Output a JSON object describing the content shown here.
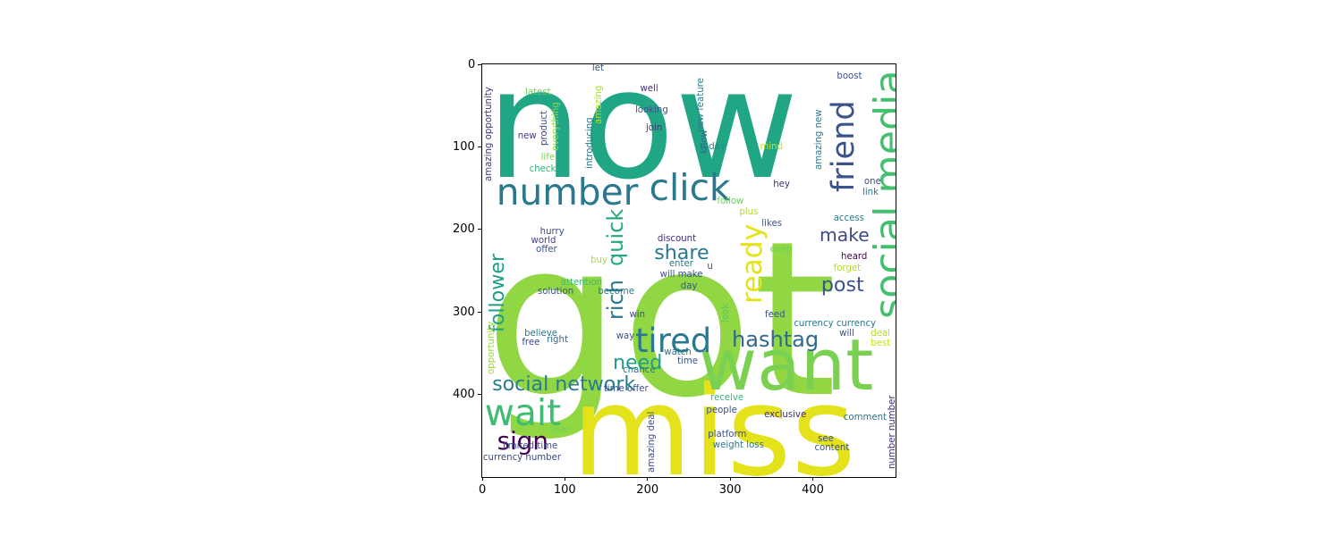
{
  "chart_data": {
    "type": "wordcloud",
    "xlim": [
      0,
      500
    ],
    "ylim": [
      500,
      0
    ],
    "x_ticks": [
      "0",
      "100",
      "200",
      "300",
      "400"
    ],
    "y_ticks": [
      "0",
      "100",
      "200",
      "300",
      "400"
    ],
    "colormap": "viridis",
    "words": [
      {
        "text": "now",
        "x": 5,
        "y": 128,
        "size": 183,
        "color": "#21a685",
        "rot": 0
      },
      {
        "text": "got",
        "x": 3,
        "y": 388,
        "size": 260,
        "color": "#90d743",
        "rot": 0
      },
      {
        "text": "miss",
        "x": 108,
        "y": 490,
        "size": 150,
        "color": "#e4e21b",
        "rot": 0
      },
      {
        "text": "want",
        "x": 262,
        "y": 390,
        "size": 86,
        "color": "#7ad151",
        "rot": 0
      },
      {
        "text": "number",
        "x": 17,
        "y": 168,
        "size": 44,
        "color": "#2a788e",
        "rot": 0
      },
      {
        "text": "click",
        "x": 202,
        "y": 163,
        "size": 44,
        "color": "#2a788e",
        "rot": 0
      },
      {
        "text": "social media",
        "x": 470,
        "y": 308,
        "size": 48,
        "color": "#44bf70",
        "rot": 90
      },
      {
        "text": "friend",
        "x": 418,
        "y": 155,
        "size": 38,
        "color": "#3b528b",
        "rot": 90
      },
      {
        "text": "ready",
        "x": 311,
        "y": 290,
        "size": 34,
        "color": "#e4e21b",
        "rot": 90
      },
      {
        "text": "quick",
        "x": 148,
        "y": 245,
        "size": 26,
        "color": "#22a884",
        "rot": 90
      },
      {
        "text": "rich",
        "x": 148,
        "y": 310,
        "size": 26,
        "color": "#2a788e",
        "rot": 90
      },
      {
        "text": "tired",
        "x": 185,
        "y": 348,
        "size": 40,
        "color": "#2a788e",
        "rot": 0
      },
      {
        "text": "hashtag",
        "x": 302,
        "y": 341,
        "size": 26,
        "color": "#31688e",
        "rot": 0
      },
      {
        "text": "make",
        "x": 408,
        "y": 213,
        "size": 22,
        "color": "#3e4a89",
        "rot": 0
      },
      {
        "text": "post",
        "x": 410,
        "y": 275,
        "size": 24,
        "color": "#3b528b",
        "rot": 0
      },
      {
        "text": "share",
        "x": 208,
        "y": 236,
        "size": 24,
        "color": "#2a788e",
        "rot": 0
      },
      {
        "text": "follower",
        "x": 7,
        "y": 325,
        "size": 24,
        "color": "#1f9e89",
        "rot": 90
      },
      {
        "text": "need",
        "x": 158,
        "y": 369,
        "size": 24,
        "color": "#1f9e89",
        "rot": 0
      },
      {
        "text": "social network",
        "x": 12,
        "y": 395,
        "size": 24,
        "color": "#287c8e",
        "rot": 0
      },
      {
        "text": "wait",
        "x": 3,
        "y": 436,
        "size": 44,
        "color": "#3fbc73",
        "rot": 0
      },
      {
        "text": "sign",
        "x": 18,
        "y": 466,
        "size": 30,
        "color": "#440154",
        "rot": 0
      },
      {
        "text": "amazing opportunity",
        "x": 3,
        "y": 142,
        "size": 11,
        "color": "#46337e",
        "rot": 90
      },
      {
        "text": "opportunity",
        "x": 6,
        "y": 376,
        "size": 11,
        "color": "#9bd93c",
        "rot": 90
      },
      {
        "text": "latest",
        "x": 52,
        "y": 38,
        "size": 11,
        "color": "#6ece58",
        "rot": 0
      },
      {
        "text": "let",
        "x": 133,
        "y": 9,
        "size": 11,
        "color": "#3b528b",
        "rot": 0
      },
      {
        "text": "well",
        "x": 191,
        "y": 34,
        "size": 11,
        "color": "#46327e",
        "rot": 0
      },
      {
        "text": "looking",
        "x": 185,
        "y": 60,
        "size": 11,
        "color": "#3b528b",
        "rot": 0
      },
      {
        "text": "join",
        "x": 198,
        "y": 81,
        "size": 11,
        "color": "#46337e",
        "rot": 0
      },
      {
        "text": "today",
        "x": 263,
        "y": 104,
        "size": 11,
        "color": "#26828e",
        "rot": 0
      },
      {
        "text": "mind",
        "x": 336,
        "y": 104,
        "size": 11,
        "color": "#c8e020",
        "rot": 0
      },
      {
        "text": "boost",
        "x": 429,
        "y": 18,
        "size": 11,
        "color": "#3b528b",
        "rot": 0
      },
      {
        "text": "new feature",
        "x": 260,
        "y": 82,
        "size": 11,
        "color": "#26828e",
        "rot": 90
      },
      {
        "text": "amazing new",
        "x": 403,
        "y": 128,
        "size": 11,
        "color": "#2a788e",
        "rot": 90
      },
      {
        "text": "know",
        "x": 264,
        "y": 108,
        "size": 11,
        "color": "#31688e",
        "rot": 90
      },
      {
        "text": "introducing",
        "x": 125,
        "y": 127,
        "size": 11,
        "color": "#2a788e",
        "rot": 90
      },
      {
        "text": "amazing",
        "x": 136,
        "y": 72,
        "size": 11,
        "color": "#addc30",
        "rot": 90
      },
      {
        "text": "everything",
        "x": 84,
        "y": 105,
        "size": 11,
        "color": "#89d548",
        "rot": 90
      },
      {
        "text": "product",
        "x": 70,
        "y": 98,
        "size": 11,
        "color": "#3e4a89",
        "rot": 90
      },
      {
        "text": "new",
        "x": 43,
        "y": 91,
        "size": 11,
        "color": "#433e85",
        "rot": 0
      },
      {
        "text": "life",
        "x": 71,
        "y": 117,
        "size": 11,
        "color": "#7ad151",
        "rot": 0
      },
      {
        "text": "check",
        "x": 57,
        "y": 131,
        "size": 11,
        "color": "#35b779",
        "rot": 0
      },
      {
        "text": "hey",
        "x": 352,
        "y": 149,
        "size": 11,
        "color": "#472d7b",
        "rot": 0
      },
      {
        "text": "one",
        "x": 462,
        "y": 146,
        "size": 11,
        "color": "#3b528b",
        "rot": 0
      },
      {
        "text": "link",
        "x": 460,
        "y": 159,
        "size": 11,
        "color": "#2a788e",
        "rot": 0
      },
      {
        "text": "follow",
        "x": 284,
        "y": 170,
        "size": 11,
        "color": "#6ece58",
        "rot": 0
      },
      {
        "text": "plus",
        "x": 311,
        "y": 183,
        "size": 11,
        "color": "#addc30",
        "rot": 0
      },
      {
        "text": "access",
        "x": 425,
        "y": 191,
        "size": 11,
        "color": "#2a788e",
        "rot": 0
      },
      {
        "text": "likes",
        "x": 338,
        "y": 197,
        "size": 11,
        "color": "#3b528b",
        "rot": 0
      },
      {
        "text": "hurry",
        "x": 70,
        "y": 207,
        "size": 11,
        "color": "#3e4a89",
        "rot": 0
      },
      {
        "text": "world",
        "x": 59,
        "y": 218,
        "size": 11,
        "color": "#433e85",
        "rot": 0
      },
      {
        "text": "discount",
        "x": 212,
        "y": 215,
        "size": 11,
        "color": "#472d7b",
        "rot": 0
      },
      {
        "text": "offer",
        "x": 65,
        "y": 229,
        "size": 11,
        "color": "#3b528b",
        "rot": 0
      },
      {
        "text": "even",
        "x": 348,
        "y": 229,
        "size": 11,
        "color": "#6ece58",
        "rot": 0
      },
      {
        "text": "heard",
        "x": 434,
        "y": 237,
        "size": 11,
        "color": "#440154",
        "rot": 0
      },
      {
        "text": "buy",
        "x": 131,
        "y": 242,
        "size": 11,
        "color": "#a5db36",
        "rot": 0
      },
      {
        "text": "enter",
        "x": 226,
        "y": 246,
        "size": 11,
        "color": "#2a788e",
        "rot": 0
      },
      {
        "text": "u",
        "x": 272,
        "y": 249,
        "size": 11,
        "color": "#3b528b",
        "rot": 0
      },
      {
        "text": "forget",
        "x": 425,
        "y": 251,
        "size": 11,
        "color": "#b5de2b",
        "rot": 0
      },
      {
        "text": "will make",
        "x": 215,
        "y": 259,
        "size": 11,
        "color": "#3b528b",
        "rot": 0
      },
      {
        "text": "attention",
        "x": 95,
        "y": 268,
        "size": 11,
        "color": "#3fbc73",
        "rot": 0
      },
      {
        "text": "day",
        "x": 240,
        "y": 273,
        "size": 11,
        "color": "#3b528b",
        "rot": 0
      },
      {
        "text": "solution",
        "x": 67,
        "y": 279,
        "size": 11,
        "color": "#3b528b",
        "rot": 0
      },
      {
        "text": "become",
        "x": 140,
        "y": 279,
        "size": 11,
        "color": "#2a788e",
        "rot": 0
      },
      {
        "text": "look",
        "x": 290,
        "y": 313,
        "size": 11,
        "color": "#5ec962",
        "rot": 90
      },
      {
        "text": "win",
        "x": 178,
        "y": 307,
        "size": 11,
        "color": "#3e4a89",
        "rot": 0
      },
      {
        "text": "feed",
        "x": 342,
        "y": 307,
        "size": 11,
        "color": "#3b528b",
        "rot": 0
      },
      {
        "text": "currency currency",
        "x": 377,
        "y": 318,
        "size": 11,
        "color": "#2a788e",
        "rot": 0
      },
      {
        "text": "believe",
        "x": 51,
        "y": 330,
        "size": 11,
        "color": "#2a788e",
        "rot": 0
      },
      {
        "text": "way",
        "x": 162,
        "y": 334,
        "size": 11,
        "color": "#3b528b",
        "rot": 0
      },
      {
        "text": "will",
        "x": 432,
        "y": 330,
        "size": 11,
        "color": "#3b528b",
        "rot": 0
      },
      {
        "text": "deal",
        "x": 470,
        "y": 330,
        "size": 11,
        "color": "#b5de2b",
        "rot": 0
      },
      {
        "text": "free",
        "x": 48,
        "y": 341,
        "size": 11,
        "color": "#3e4a89",
        "rot": 0
      },
      {
        "text": "right",
        "x": 78,
        "y": 338,
        "size": 11,
        "color": "#31688e",
        "rot": 0
      },
      {
        "text": "best",
        "x": 470,
        "y": 342,
        "size": 11,
        "color": "#c8e020",
        "rot": 0
      },
      {
        "text": "watch",
        "x": 220,
        "y": 353,
        "size": 11,
        "color": "#2a788e",
        "rot": 0
      },
      {
        "text": "time",
        "x": 236,
        "y": 364,
        "size": 11,
        "color": "#3b528b",
        "rot": 0
      },
      {
        "text": "chance",
        "x": 170,
        "y": 375,
        "size": 11,
        "color": "#2a788e",
        "rot": 0
      },
      {
        "text": "time offer",
        "x": 147,
        "y": 397,
        "size": 11,
        "color": "#3b528b",
        "rot": 0
      },
      {
        "text": "receive",
        "x": 276,
        "y": 408,
        "size": 11,
        "color": "#35b779",
        "rot": 0
      },
      {
        "text": "people",
        "x": 271,
        "y": 423,
        "size": 11,
        "color": "#3b528b",
        "rot": 0
      },
      {
        "text": "exclusive",
        "x": 341,
        "y": 429,
        "size": 11,
        "color": "#472d7b",
        "rot": 0
      },
      {
        "text": "comment",
        "x": 437,
        "y": 432,
        "size": 11,
        "color": "#2a788e",
        "rot": 0
      },
      {
        "text": "amazing deal",
        "x": 200,
        "y": 495,
        "size": 11,
        "color": "#3e4a89",
        "rot": 90
      },
      {
        "text": "number number",
        "x": 491,
        "y": 490,
        "size": 11,
        "color": "#472d7b",
        "rot": 90
      },
      {
        "text": "user",
        "x": 82,
        "y": 447,
        "size": 11,
        "color": "#6ece58",
        "rot": 0
      },
      {
        "text": "platform",
        "x": 273,
        "y": 453,
        "size": 11,
        "color": "#3b528b",
        "rot": 0
      },
      {
        "text": "see",
        "x": 406,
        "y": 458,
        "size": 11,
        "color": "#3e4a89",
        "rot": 0
      },
      {
        "text": "weight loss",
        "x": 279,
        "y": 466,
        "size": 11,
        "color": "#2a788e",
        "rot": 0
      },
      {
        "text": "limited time",
        "x": 25,
        "y": 467,
        "size": 11,
        "color": "#3b528b",
        "rot": 0
      },
      {
        "text": "content",
        "x": 402,
        "y": 469,
        "size": 11,
        "color": "#3b528b",
        "rot": 0
      },
      {
        "text": "currency number",
        "x": 1,
        "y": 481,
        "size": 11,
        "color": "#3e4a89",
        "rot": 0
      }
    ]
  }
}
